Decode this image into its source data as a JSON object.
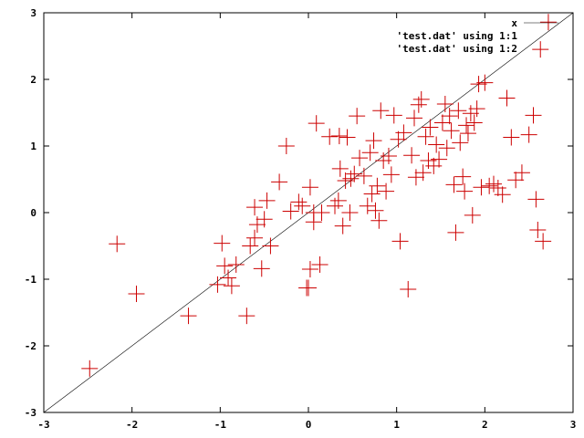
{
  "chart_data": {
    "type": "scatter",
    "xlim": [
      -3,
      3
    ],
    "ylim": [
      -3,
      3
    ],
    "xticks": [
      -3,
      -2,
      -1,
      0,
      1,
      2,
      3
    ],
    "yticks": [
      -3,
      -2,
      -1,
      0,
      1,
      2,
      3
    ],
    "grid": false,
    "legend_position": "top-right",
    "legend": [
      {
        "label": "x",
        "color": "#000000",
        "style": "line"
      },
      {
        "label": "'test.dat' using 1:1",
        "color": "#000000",
        "style": "none"
      },
      {
        "label": "'test.dat' using 1:2",
        "color": "#000000",
        "style": "none"
      }
    ],
    "series": [
      {
        "style": "line",
        "color": "#000000",
        "x": [
          -3,
          3
        ],
        "y": [
          -3,
          3
        ]
      },
      {
        "style": "points",
        "marker": "plus",
        "color": "#cc0000",
        "points": [
          [
            2.72,
            2.86
          ],
          [
            2.63,
            2.45
          ],
          [
            -2.48,
            -2.34
          ],
          [
            -2.17,
            -0.47
          ],
          [
            -1.95,
            -1.22
          ],
          [
            -1.36,
            -1.55
          ],
          [
            -0.7,
            -1.55
          ],
          [
            -1.03,
            -1.08
          ],
          [
            -0.98,
            -0.46
          ],
          [
            -0.95,
            -0.8
          ],
          [
            -0.91,
            -0.98
          ],
          [
            -0.87,
            -1.1
          ],
          [
            -0.82,
            -0.78
          ],
          [
            -0.66,
            -0.5
          ],
          [
            -0.61,
            -0.38
          ],
          [
            -0.58,
            -0.18
          ],
          [
            -0.53,
            -0.84
          ],
          [
            -0.5,
            -0.1
          ],
          [
            -0.47,
            0.18
          ],
          [
            -0.43,
            -0.5
          ],
          [
            -0.61,
            0.08
          ],
          [
            -0.33,
            0.46
          ],
          [
            -0.25,
            1.0
          ],
          [
            -0.2,
            0.02
          ],
          [
            -0.11,
            0.16
          ],
          [
            -0.07,
            0.1
          ],
          [
            -0.02,
            -1.13
          ],
          [
            0.02,
            -0.85
          ],
          [
            0.0,
            -1.13
          ],
          [
            0.02,
            0.38
          ],
          [
            0.06,
            0.0
          ],
          [
            0.06,
            -0.14
          ],
          [
            0.09,
            1.34
          ],
          [
            0.13,
            -0.78
          ],
          [
            0.15,
            0.0
          ],
          [
            0.24,
            1.14
          ],
          [
            0.3,
            0.1
          ],
          [
            0.34,
            0.18
          ],
          [
            0.36,
            0.66
          ],
          [
            0.35,
            1.15
          ],
          [
            0.39,
            -0.2
          ],
          [
            0.42,
            0.48
          ],
          [
            0.44,
            1.13
          ],
          [
            0.47,
            0.0
          ],
          [
            0.48,
            0.51
          ],
          [
            0.52,
            0.58
          ],
          [
            0.55,
            1.45
          ],
          [
            0.58,
            0.82
          ],
          [
            0.63,
            0.55
          ],
          [
            0.67,
            0.1
          ],
          [
            0.7,
            0.9
          ],
          [
            0.72,
            0.28
          ],
          [
            0.74,
            1.08
          ],
          [
            0.76,
            0.03
          ],
          [
            0.78,
            0.4
          ],
          [
            0.8,
            -0.12
          ],
          [
            0.82,
            1.53
          ],
          [
            0.85,
            0.78
          ],
          [
            0.88,
            0.32
          ],
          [
            0.91,
            0.85
          ],
          [
            0.94,
            0.57
          ],
          [
            0.97,
            1.46
          ],
          [
            1.02,
            1.1
          ],
          [
            1.04,
            -0.43
          ],
          [
            1.08,
            1.2
          ],
          [
            1.13,
            -1.15
          ],
          [
            1.17,
            0.86
          ],
          [
            1.2,
            1.42
          ],
          [
            1.22,
            0.53
          ],
          [
            1.25,
            1.62
          ],
          [
            1.28,
            1.7
          ],
          [
            1.3,
            0.6
          ],
          [
            1.33,
            1.14
          ],
          [
            1.36,
            0.78
          ],
          [
            1.38,
            1.28
          ],
          [
            1.42,
            0.7
          ],
          [
            1.45,
            1.02
          ],
          [
            1.48,
            0.8
          ],
          [
            1.52,
            1.35
          ],
          [
            1.55,
            1.63
          ],
          [
            1.57,
            0.97
          ],
          [
            1.6,
            1.45
          ],
          [
            1.62,
            1.23
          ],
          [
            1.65,
            0.42
          ],
          [
            1.67,
            -0.3
          ],
          [
            1.7,
            1.53
          ],
          [
            1.72,
            1.05
          ],
          [
            1.75,
            0.54
          ],
          [
            1.77,
            0.32
          ],
          [
            1.79,
            1.31
          ],
          [
            1.81,
            1.19
          ],
          [
            1.84,
            1.49
          ],
          [
            1.86,
            -0.04
          ],
          [
            1.88,
            1.35
          ],
          [
            1.91,
            1.56
          ],
          [
            1.93,
            1.93
          ],
          [
            1.96,
            0.38
          ],
          [
            2.0,
            1.95
          ],
          [
            2.05,
            0.4
          ],
          [
            2.1,
            0.43
          ],
          [
            2.15,
            0.37
          ],
          [
            2.2,
            0.27
          ],
          [
            2.25,
            1.72
          ],
          [
            2.3,
            1.13
          ],
          [
            2.35,
            0.49
          ],
          [
            2.42,
            0.6
          ],
          [
            2.5,
            1.17
          ],
          [
            2.55,
            1.46
          ],
          [
            2.58,
            0.2
          ],
          [
            2.6,
            -0.26
          ],
          [
            2.66,
            -0.43
          ]
        ]
      }
    ]
  }
}
